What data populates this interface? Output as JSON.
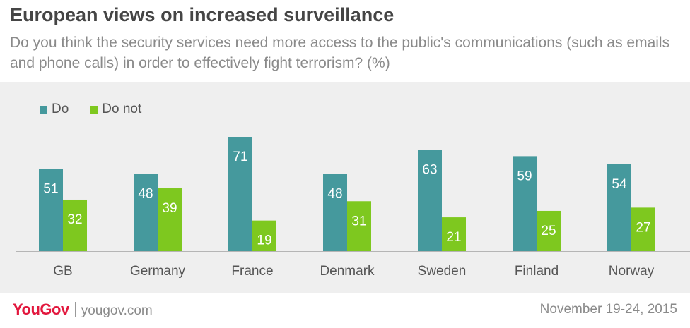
{
  "header": {
    "title": "European views on increased surveillance",
    "subtitle": "Do you think the security services need more access to the public's communications (such as emails and phone calls) in order to effectively fight terrorism? (%)"
  },
  "chart_data": {
    "type": "bar",
    "categories": [
      "GB",
      "Germany",
      "France",
      "Denmark",
      "Sweden",
      "Finland",
      "Norway"
    ],
    "series": [
      {
        "name": "Do",
        "values": [
          51,
          48,
          71,
          48,
          63,
          59,
          54
        ],
        "color": "#45999d"
      },
      {
        "name": "Do not",
        "values": [
          32,
          39,
          19,
          31,
          21,
          25,
          27
        ],
        "color": "#7ec81f"
      }
    ],
    "ylim": [
      0,
      71
    ],
    "grid": false,
    "legend": "top-left",
    "data_labels": true
  },
  "footer": {
    "logo": "YouGov",
    "site": "yougov.com",
    "date": "November 19-24, 2015"
  }
}
